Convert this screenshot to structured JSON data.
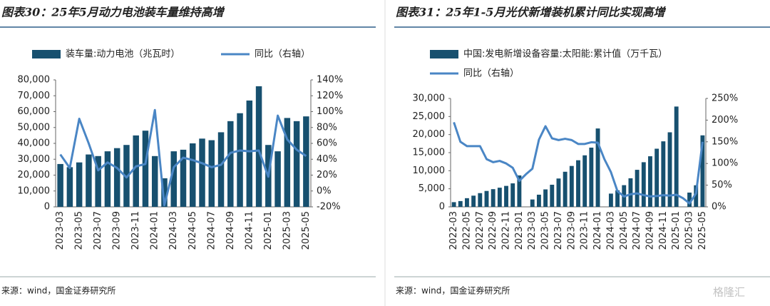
{
  "chart_data": [
    {
      "type": "combo",
      "title": "图表30：25年5月动力电池装车量维持高增",
      "source": "来源：wind，国金证券研究所",
      "categories": [
        "2023-03",
        null,
        "2023-05",
        null,
        "2023-07",
        null,
        "2023-09",
        null,
        "2023-11",
        null,
        "2024-01",
        null,
        "2024-03",
        null,
        "2024-05",
        null,
        "2024-07",
        null,
        "2024-09",
        null,
        "2024-11",
        null,
        "2025-01",
        null,
        "2025-03",
        null,
        "2025-05"
      ],
      "series": [
        {
          "name": "装车量:动力电池（兆瓦时）",
          "type": "bar",
          "color": "#17506f",
          "values": [
            27000,
            25000,
            28000,
            33000,
            32000,
            35000,
            37000,
            39000,
            45000,
            48000,
            32000,
            18000,
            35000,
            36000,
            40000,
            43000,
            42000,
            47000,
            54000,
            59000,
            67000,
            76000,
            39000,
            35000,
            56000,
            54000,
            57000
          ]
        },
        {
          "name": "同比（右轴）",
          "type": "line",
          "axis": "y2",
          "color": "#4a86c5",
          "values": [
            46,
            29,
            91,
            60,
            26,
            36,
            29,
            17,
            31,
            34,
            102,
            -18,
            30,
            42,
            39,
            35,
            30,
            33,
            48,
            51,
            50,
            51,
            18,
            95,
            65,
            52,
            44
          ]
        }
      ],
      "ylim": [
        0,
        80000
      ],
      "yticks": [
        0,
        {
          "value": 10000,
          "label": "10,000"
        },
        {
          "value": 20000,
          "label": "20,000"
        },
        {
          "value": 30000,
          "label": "30,000"
        },
        {
          "value": 40000,
          "label": "40,000"
        },
        {
          "value": 50000,
          "label": "50,000"
        },
        {
          "value": 60000,
          "label": "60,000"
        },
        {
          "value": 70000,
          "label": "70,000"
        },
        {
          "value": 80000,
          "label": "80,000"
        }
      ],
      "y2lim": [
        -20,
        140
      ],
      "y2ticks": [
        {
          "value": -20,
          "label": "-20%"
        },
        {
          "value": 0,
          "label": "0%"
        },
        {
          "value": 20,
          "label": "20%"
        },
        {
          "value": 40,
          "label": "40%"
        },
        {
          "value": 60,
          "label": "60%"
        },
        {
          "value": 80,
          "label": "80%"
        },
        {
          "value": 100,
          "label": "100%"
        },
        {
          "value": 120,
          "label": "120%"
        },
        {
          "value": 140,
          "label": "140%"
        }
      ],
      "legend": "top"
    },
    {
      "type": "combo",
      "title": "图表31：25年1-5月光伏新增装机累计同比实现高增",
      "source": "来源：wind，国金证券研究所",
      "categories": [
        "2022-03",
        null,
        "2022-05",
        null,
        "2022-07",
        null,
        "2022-09",
        null,
        "2022-11",
        null,
        "2023-01",
        null,
        "2023-03",
        null,
        "2023-05",
        null,
        "2023-07",
        null,
        "2023-09",
        null,
        "2023-11",
        null,
        "2024-01",
        null,
        "2024-03",
        null,
        "2024-05",
        null,
        "2024-07",
        null,
        "2024-09",
        null,
        "2024-11",
        null,
        "2025-01",
        null,
        "2025-03",
        null,
        "2025-05"
      ],
      "series": [
        {
          "name": "中国:发电新增设备容量:太阳能:累计值（万千瓦）",
          "type": "bar",
          "color": "#17506f",
          "values": [
            1300,
            1600,
            2400,
            3100,
            3800,
            4400,
            4900,
            5300,
            5800,
            6500,
            8700,
            null,
            2040,
            3366,
            4831,
            6121,
            7842,
            9712,
            11316,
            12894,
            14256,
            16388,
            21688,
            null,
            3667,
            4574,
            6000,
            7904,
            10248,
            12353,
            13999,
            16088,
            18130,
            20630,
            27757,
            null,
            3947,
            5971,
            19785
          ]
        },
        {
          "name": "同比（右轴）",
          "type": "line",
          "axis": "y2",
          "color": "#4a86c5",
          "values": [
            195,
            150,
            140,
            140,
            140,
            110,
            103,
            106,
            100,
            90,
            60,
            75,
            88,
            155,
            186,
            158,
            154,
            157,
            154,
            145,
            145,
            149,
            148,
            110,
            80,
            36,
            24,
            29,
            31,
            27,
            24,
            25,
            27,
            26,
            28,
            20,
            8,
            31,
            150
          ]
        }
      ],
      "ylim": [
        0,
        30000
      ],
      "yticks": [
        0,
        {
          "value": 5000,
          "label": "5,000"
        },
        {
          "value": 10000,
          "label": "10,000"
        },
        {
          "value": 15000,
          "label": "15,000"
        },
        {
          "value": 20000,
          "label": "20,000"
        },
        {
          "value": 25000,
          "label": "25,000"
        },
        {
          "value": 30000,
          "label": "30,000"
        }
      ],
      "y2lim": [
        0,
        250
      ],
      "y2ticks": [
        {
          "value": 0,
          "label": "0%"
        },
        {
          "value": 50,
          "label": "50%"
        },
        {
          "value": 100,
          "label": "100%"
        },
        {
          "value": 150,
          "label": "150%"
        },
        {
          "value": 200,
          "label": "200%"
        },
        {
          "value": 250,
          "label": "250%"
        }
      ],
      "legend": "top"
    }
  ],
  "watermark": "格隆汇"
}
